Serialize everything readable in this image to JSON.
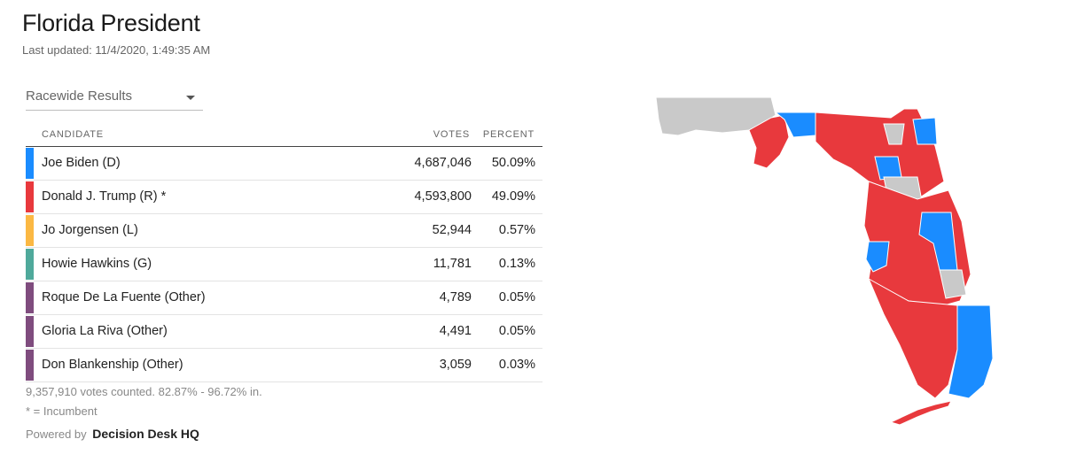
{
  "header": {
    "title": "Florida President",
    "last_updated": "Last updated: 11/4/2020, 1:49:35 AM"
  },
  "dropdown": {
    "selected": "Racewide Results"
  },
  "table": {
    "columns": {
      "candidate": "CANDIDATE",
      "votes": "VOTES",
      "percent": "PERCENT"
    },
    "rows": [
      {
        "name": "Joe Biden (D)",
        "votes": "4,687,046",
        "percent": "50.09%",
        "color": "#1a8cff"
      },
      {
        "name": "Donald J. Trump (R) *",
        "votes": "4,593,800",
        "percent": "49.09%",
        "color": "#e8393d"
      },
      {
        "name": "Jo Jorgensen (L)",
        "votes": "52,944",
        "percent": "0.57%",
        "color": "#fbb843"
      },
      {
        "name": "Howie Hawkins (G)",
        "votes": "11,781",
        "percent": "0.13%",
        "color": "#4fa99b"
      },
      {
        "name": "Roque De La Fuente (Other)",
        "votes": "4,789",
        "percent": "0.05%",
        "color": "#7f4c7e"
      },
      {
        "name": "Gloria La Riva (Other)",
        "votes": "4,491",
        "percent": "0.05%",
        "color": "#7f4c7e"
      },
      {
        "name": "Don Blankenship (Other)",
        "votes": "3,059",
        "percent": "0.03%",
        "color": "#7f4c7e"
      }
    ]
  },
  "footer": {
    "votes_counted": "9,357,910 votes counted. 82.87% - 96.72% in.",
    "incumbent_note": "* = Incumbent",
    "powered_by": "Powered by",
    "brand": "Decision Desk HQ"
  },
  "map": {
    "colors": {
      "dem": "#1a8cff",
      "rep": "#e8393d",
      "pending": "#c9c9c9",
      "border": "#ffffff"
    }
  }
}
